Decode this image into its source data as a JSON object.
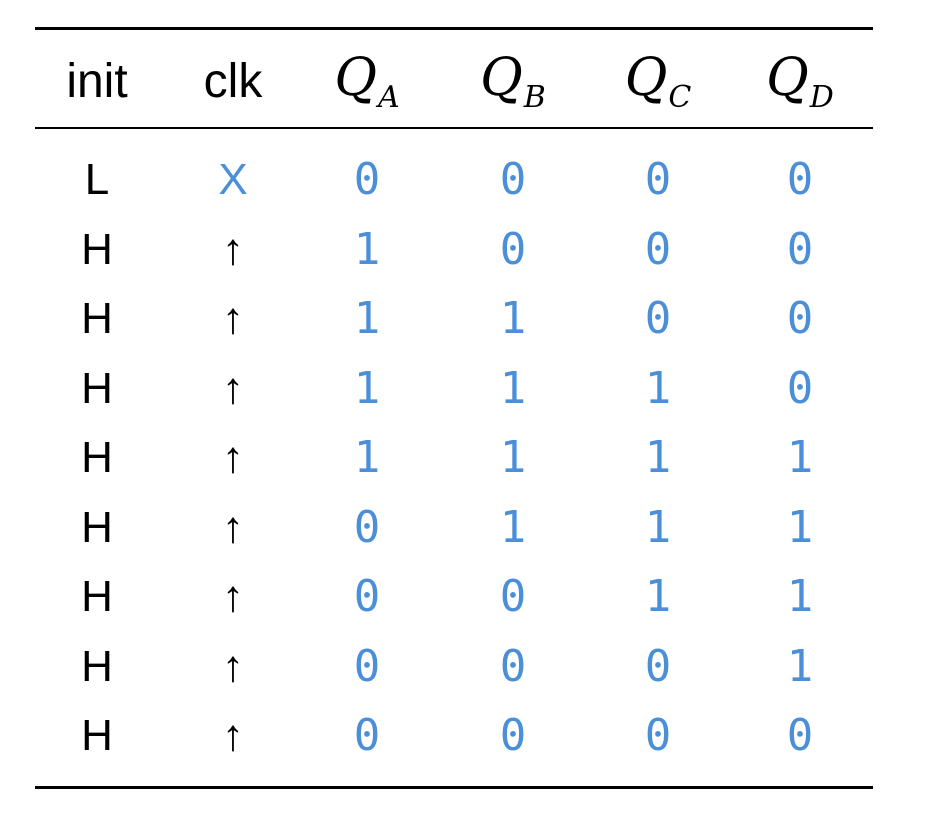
{
  "table": {
    "headers": [
      {
        "text": "init"
      },
      {
        "text": "clk"
      },
      {
        "base": "Q",
        "sub": "A"
      },
      {
        "base": "Q",
        "sub": "B"
      },
      {
        "base": "Q",
        "sub": "C"
      },
      {
        "base": "Q",
        "sub": "D"
      }
    ],
    "rows": [
      {
        "init": "L",
        "clk": "X",
        "qa": "0",
        "qb": "0",
        "qc": "0",
        "qd": "0"
      },
      {
        "init": "H",
        "clk": "↑",
        "qa": "1",
        "qb": "0",
        "qc": "0",
        "qd": "0"
      },
      {
        "init": "H",
        "clk": "↑",
        "qa": "1",
        "qb": "1",
        "qc": "0",
        "qd": "0"
      },
      {
        "init": "H",
        "clk": "↑",
        "qa": "1",
        "qb": "1",
        "qc": "1",
        "qd": "0"
      },
      {
        "init": "H",
        "clk": "↑",
        "qa": "1",
        "qb": "1",
        "qc": "1",
        "qd": "1"
      },
      {
        "init": "H",
        "clk": "↑",
        "qa": "0",
        "qb": "1",
        "qc": "1",
        "qd": "1"
      },
      {
        "init": "H",
        "clk": "↑",
        "qa": "0",
        "qb": "0",
        "qc": "1",
        "qd": "1"
      },
      {
        "init": "H",
        "clk": "↑",
        "qa": "0",
        "qb": "0",
        "qc": "0",
        "qd": "1"
      },
      {
        "init": "H",
        "clk": "↑",
        "qa": "0",
        "qb": "0",
        "qc": "0",
        "qd": "0"
      }
    ]
  },
  "colors": {
    "text": "#000000",
    "value": "#4a8fd8",
    "rule": "#000000"
  }
}
